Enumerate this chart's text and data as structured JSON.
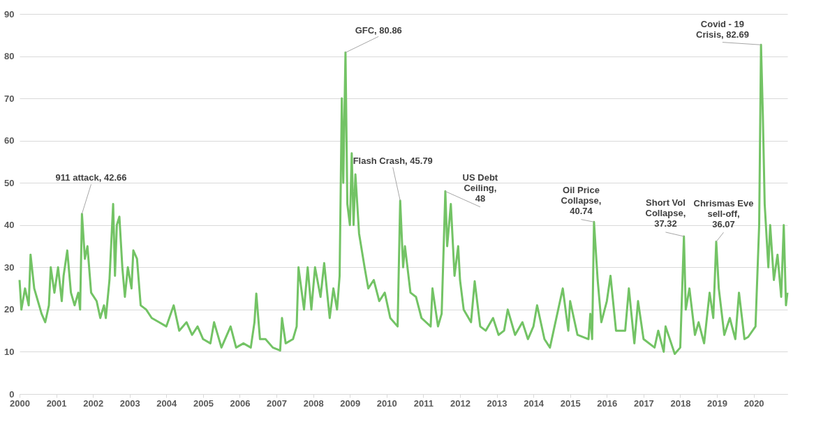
{
  "chart_data": {
    "type": "line",
    "x": [
      2000.0,
      2000.05,
      2000.15,
      2000.25,
      2000.3,
      2000.4,
      2000.5,
      2000.6,
      2000.7,
      2000.8,
      2000.85,
      2000.95,
      2001.05,
      2001.15,
      2001.2,
      2001.3,
      2001.4,
      2001.5,
      2001.6,
      2001.65,
      2001.7,
      2001.78,
      2001.85,
      2001.95,
      2002.1,
      2002.2,
      2002.3,
      2002.35,
      2002.45,
      2002.55,
      2002.6,
      2002.65,
      2002.72,
      2002.8,
      2002.87,
      2002.95,
      2003.05,
      2003.1,
      2003.2,
      2003.3,
      2003.45,
      2003.6,
      2003.8,
      2004.0,
      2004.2,
      2004.35,
      2004.55,
      2004.7,
      2004.85,
      2005.0,
      2005.2,
      2005.3,
      2005.5,
      2005.75,
      2005.9,
      2006.1,
      2006.3,
      2006.4,
      2006.45,
      2006.55,
      2006.7,
      2006.9,
      2007.1,
      2007.15,
      2007.25,
      2007.45,
      2007.55,
      2007.6,
      2007.75,
      2007.85,
      2007.95,
      2008.05,
      2008.2,
      2008.3,
      2008.45,
      2008.55,
      2008.65,
      2008.72,
      2008.78,
      2008.82,
      2008.88,
      2008.93,
      2009.0,
      2009.05,
      2009.1,
      2009.15,
      2009.25,
      2009.4,
      2009.5,
      2009.65,
      2009.8,
      2009.95,
      2010.1,
      2010.3,
      2010.37,
      2010.45,
      2010.5,
      2010.65,
      2010.8,
      2010.95,
      2011.2,
      2011.25,
      2011.4,
      2011.5,
      2011.6,
      2011.65,
      2011.75,
      2011.85,
      2011.95,
      2012.0,
      2012.1,
      2012.3,
      2012.4,
      2012.55,
      2012.7,
      2012.9,
      2013.05,
      2013.2,
      2013.3,
      2013.5,
      2013.7,
      2013.85,
      2014.0,
      2014.1,
      2014.3,
      2014.45,
      2014.55,
      2014.8,
      2014.95,
      2015.0,
      2015.2,
      2015.5,
      2015.55,
      2015.6,
      2015.65,
      2015.75,
      2015.85,
      2016.0,
      2016.1,
      2016.25,
      2016.5,
      2016.6,
      2016.75,
      2016.85,
      2017.0,
      2017.3,
      2017.4,
      2017.55,
      2017.6,
      2017.85,
      2018.0,
      2018.1,
      2018.15,
      2018.25,
      2018.4,
      2018.5,
      2018.65,
      2018.8,
      2018.9,
      2018.98,
      2019.05,
      2019.2,
      2019.35,
      2019.5,
      2019.6,
      2019.75,
      2019.85,
      2020.05,
      2020.15,
      2020.2,
      2020.25,
      2020.3,
      2020.4,
      2020.45,
      2020.55,
      2020.65,
      2020.75,
      2020.82,
      2020.88,
      2020.92
    ],
    "series": [
      {
        "color": "#73c365",
        "values": [
          27,
          20,
          25,
          21,
          33,
          25,
          22,
          19,
          17,
          21,
          30,
          24,
          30,
          22,
          28,
          34,
          24,
          21,
          24,
          20,
          42.66,
          32,
          35,
          24,
          22,
          18,
          21,
          18,
          27,
          45,
          28,
          40,
          42,
          30,
          23,
          30,
          25,
          34,
          32,
          21,
          20,
          18,
          17,
          16,
          21,
          15,
          17,
          14,
          16,
          13,
          12,
          17,
          11,
          16,
          11,
          12,
          11,
          17,
          23.8,
          13,
          13,
          11,
          10.3,
          18,
          12,
          13,
          16,
          30,
          20,
          30,
          20,
          30,
          23,
          31,
          18,
          25,
          20,
          28,
          70,
          50,
          80.86,
          45,
          40,
          57,
          40,
          52,
          38,
          30,
          25,
          27,
          22,
          24,
          18,
          16,
          45.79,
          30,
          35,
          24,
          23,
          18,
          16,
          25,
          16,
          19,
          48,
          35,
          45,
          28,
          35,
          27,
          20,
          17,
          26.7,
          16,
          15,
          18,
          14,
          15,
          20,
          14,
          17,
          13,
          16,
          21,
          13,
          11,
          15,
          25,
          15,
          22,
          14,
          13,
          19,
          13,
          40.74,
          27,
          17,
          22,
          28,
          15,
          15,
          25,
          12,
          22,
          13,
          11,
          15,
          10,
          16,
          9.5,
          11,
          37.32,
          20,
          25,
          14,
          17,
          12,
          24,
          18,
          36.07,
          25,
          14,
          18,
          13,
          24,
          13,
          13.5,
          16,
          40,
          82.69,
          66,
          45,
          30,
          40,
          27,
          33,
          23,
          40,
          21,
          24
        ]
      }
    ],
    "xlim": [
      2000,
      2020.92
    ],
    "xticks": [
      2000,
      2001,
      2002,
      2003,
      2004,
      2005,
      2006,
      2007,
      2008,
      2009,
      2010,
      2011,
      2012,
      2013,
      2014,
      2015,
      2016,
      2017,
      2018,
      2019,
      2020
    ],
    "ylim": [
      0,
      90
    ],
    "yticks": [
      0,
      10,
      20,
      30,
      40,
      50,
      60,
      70,
      80,
      90
    ],
    "grid": "y",
    "line_style": "solid",
    "annotations": [
      {
        "text": "911 attack, 42.66",
        "x": 2001.7,
        "y": 42.66
      },
      {
        "text": "GFC, 80.86",
        "x": 2008.88,
        "y": 80.86
      },
      {
        "text": "Flash Crash, 45.79",
        "x": 2010.37,
        "y": 45.79
      },
      {
        "text": "US Debt Ceiling,48",
        "x": 2011.6,
        "y": 48
      },
      {
        "text": "Oil Price Collapse, 40.74",
        "x": 2015.65,
        "y": 40.74
      },
      {
        "text": "Short Vol Collapse, 37.32",
        "x": 2018.1,
        "y": 37.32
      },
      {
        "text": "Chrismas Eve sell-off, 36.07",
        "x": 2018.98,
        "y": 36.07
      },
      {
        "text": "Covid - 19 Crisis, 82.69",
        "x": 2020.2,
        "y": 82.69
      }
    ]
  }
}
